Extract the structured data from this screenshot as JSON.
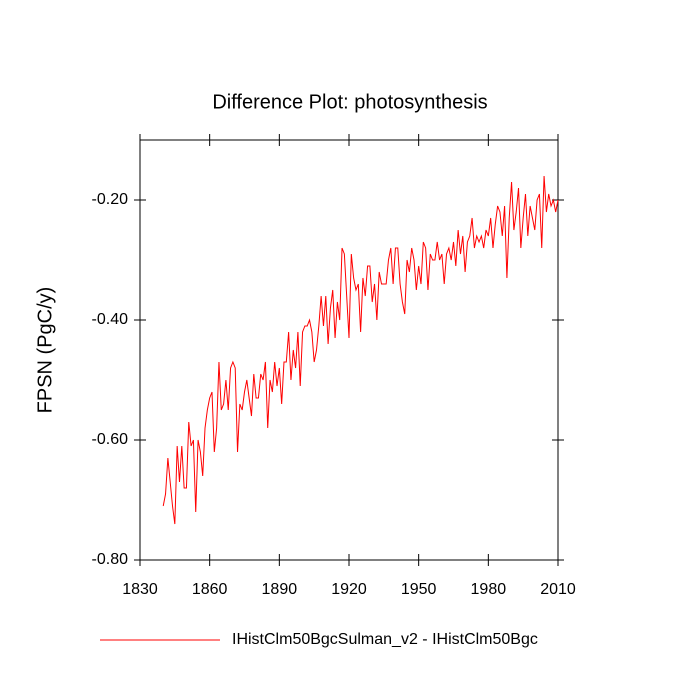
{
  "chart_data": {
    "type": "line",
    "title": "Difference Plot: photosynthesis",
    "y_label": "FPSN  (PgC/y)",
    "x": [
      1840,
      1841,
      1842,
      1843,
      1844,
      1845,
      1846,
      1847,
      1848,
      1849,
      1850,
      1851,
      1852,
      1853,
      1854,
      1855,
      1856,
      1857,
      1858,
      1859,
      1860,
      1861,
      1862,
      1863,
      1864,
      1865,
      1866,
      1867,
      1868,
      1869,
      1870,
      1871,
      1872,
      1873,
      1874,
      1875,
      1876,
      1877,
      1878,
      1879,
      1880,
      1881,
      1882,
      1883,
      1884,
      1885,
      1886,
      1887,
      1888,
      1889,
      1890,
      1891,
      1892,
      1893,
      1894,
      1895,
      1896,
      1897,
      1898,
      1899,
      1900,
      1901,
      1902,
      1903,
      1904,
      1905,
      1906,
      1907,
      1908,
      1909,
      1910,
      1911,
      1912,
      1913,
      1914,
      1915,
      1916,
      1917,
      1918,
      1919,
      1920,
      1921,
      1922,
      1923,
      1924,
      1925,
      1926,
      1927,
      1928,
      1929,
      1930,
      1931,
      1932,
      1933,
      1934,
      1935,
      1936,
      1937,
      1938,
      1939,
      1940,
      1941,
      1942,
      1943,
      1944,
      1945,
      1946,
      1947,
      1948,
      1949,
      1950,
      1951,
      1952,
      1953,
      1954,
      1955,
      1956,
      1957,
      1958,
      1959,
      1960,
      1961,
      1962,
      1963,
      1964,
      1965,
      1966,
      1967,
      1968,
      1969,
      1970,
      1971,
      1972,
      1973,
      1974,
      1975,
      1976,
      1977,
      1978,
      1979,
      1980,
      1981,
      1982,
      1983,
      1984,
      1985,
      1986,
      1987,
      1988,
      1989,
      1990,
      1991,
      1992,
      1993,
      1994,
      1995,
      1996,
      1997,
      1998,
      1999,
      2000,
      2001,
      2002,
      2003,
      2004,
      2005,
      2006,
      2007,
      2008,
      2009,
      2010
    ],
    "series": [
      {
        "name": "IHistClm50BgcSulman_v2 - IHistClm50Bgc",
        "color": "#ff0000",
        "values": [
          -0.71,
          -0.69,
          -0.63,
          -0.67,
          -0.71,
          -0.74,
          -0.61,
          -0.67,
          -0.61,
          -0.68,
          -0.68,
          -0.57,
          -0.61,
          -0.6,
          -0.72,
          -0.6,
          -0.62,
          -0.66,
          -0.58,
          -0.55,
          -0.53,
          -0.52,
          -0.62,
          -0.58,
          -0.47,
          -0.55,
          -0.54,
          -0.5,
          -0.55,
          -0.48,
          -0.47,
          -0.48,
          -0.62,
          -0.54,
          -0.55,
          -0.52,
          -0.5,
          -0.53,
          -0.56,
          -0.49,
          -0.53,
          -0.53,
          -0.49,
          -0.5,
          -0.47,
          -0.58,
          -0.5,
          -0.52,
          -0.47,
          -0.51,
          -0.48,
          -0.54,
          -0.47,
          -0.47,
          -0.42,
          -0.5,
          -0.45,
          -0.48,
          -0.42,
          -0.51,
          -0.42,
          -0.41,
          -0.41,
          -0.4,
          -0.42,
          -0.47,
          -0.45,
          -0.41,
          -0.36,
          -0.41,
          -0.36,
          -0.44,
          -0.38,
          -0.35,
          -0.43,
          -0.37,
          -0.4,
          -0.28,
          -0.29,
          -0.36,
          -0.43,
          -0.29,
          -0.33,
          -0.35,
          -0.34,
          -0.42,
          -0.33,
          -0.36,
          -0.31,
          -0.31,
          -0.37,
          -0.34,
          -0.4,
          -0.32,
          -0.34,
          -0.34,
          -0.34,
          -0.3,
          -0.28,
          -0.34,
          -0.28,
          -0.28,
          -0.34,
          -0.37,
          -0.39,
          -0.3,
          -0.32,
          -0.28,
          -0.3,
          -0.35,
          -0.31,
          -0.34,
          -0.27,
          -0.28,
          -0.35,
          -0.29,
          -0.3,
          -0.3,
          -0.27,
          -0.3,
          -0.29,
          -0.34,
          -0.29,
          -0.28,
          -0.3,
          -0.27,
          -0.31,
          -0.25,
          -0.29,
          -0.26,
          -0.32,
          -0.27,
          -0.26,
          -0.23,
          -0.28,
          -0.26,
          -0.27,
          -0.26,
          -0.28,
          -0.25,
          -0.26,
          -0.23,
          -0.28,
          -0.24,
          -0.21,
          -0.22,
          -0.26,
          -0.21,
          -0.33,
          -0.23,
          -0.17,
          -0.25,
          -0.22,
          -0.18,
          -0.28,
          -0.23,
          -0.19,
          -0.26,
          -0.21,
          -0.23,
          -0.25,
          -0.2,
          -0.19,
          -0.28,
          -0.16,
          -0.22,
          -0.19,
          -0.21,
          -0.2,
          -0.22,
          -0.2
        ]
      }
    ],
    "xlim": [
      1830,
      2010
    ],
    "xticks": [
      1830,
      1860,
      1890,
      1920,
      1950,
      1980,
      2010
    ],
    "ylim": [
      -0.8,
      -0.1
    ],
    "yticks": [
      {
        "value": -0.8,
        "label": "-0.80"
      },
      {
        "value": -0.6,
        "label": "-0.60"
      },
      {
        "value": -0.4,
        "label": "-0.40"
      },
      {
        "value": -0.2,
        "label": "-0.20"
      }
    ]
  }
}
